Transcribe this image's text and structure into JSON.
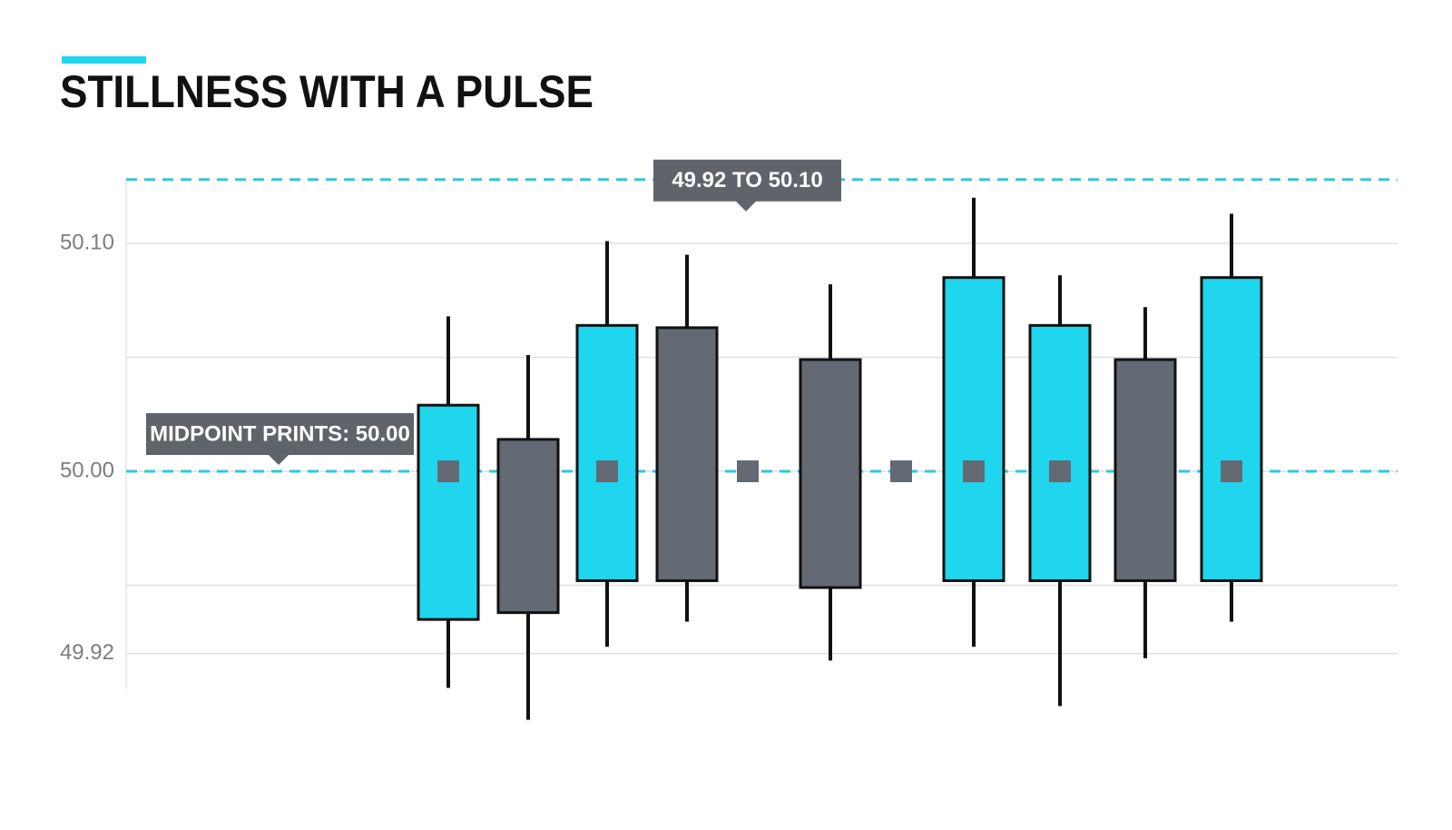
{
  "chart_data": {
    "type": "candlestick",
    "title": "STILLNESS WITH A PULSE",
    "categories": [
      null,
      null,
      null,
      null,
      null,
      null,
      null,
      null,
      null,
      null,
      null
    ],
    "open": [
      49.935,
      50.014,
      49.952,
      50.063,
      null,
      50.049,
      null,
      49.952,
      49.952,
      50.049,
      49.952
    ],
    "high": [
      50.068,
      50.051,
      50.101,
      50.095,
      null,
      50.082,
      null,
      50.12,
      50.086,
      50.072,
      50.113
    ],
    "low": [
      49.905,
      49.891,
      49.923,
      49.934,
      null,
      49.917,
      null,
      49.923,
      49.897,
      49.918,
      49.934
    ],
    "close": [
      50.029,
      49.938,
      50.064,
      49.952,
      null,
      49.949,
      null,
      50.085,
      50.064,
      49.952,
      50.085
    ],
    "midpoints": [
      50.0,
      null,
      50.0,
      null,
      50.0,
      null,
      50.0,
      50.0,
      50.0,
      null,
      50.0
    ],
    "up_color": "#1fd6ee",
    "down_color": "#646a73",
    "midpoint_color": "#646a73",
    "reference_color": "#2ccbd9",
    "ylim": [
      49.86,
      50.15
    ],
    "yticks": [
      {
        "value": 50.1,
        "label": "50.10"
      },
      {
        "value": 50,
        "label": "50.00"
      },
      49.92
    ],
    "minor_yticks": [
      50.05,
      49.95
    ],
    "grid": true,
    "annotations": [
      {
        "text": "49.92 TO 50.10",
        "y": 50.128
      },
      {
        "text": "MIDPOINT PRINTS: 50.00",
        "y": 50.0
      }
    ]
  }
}
